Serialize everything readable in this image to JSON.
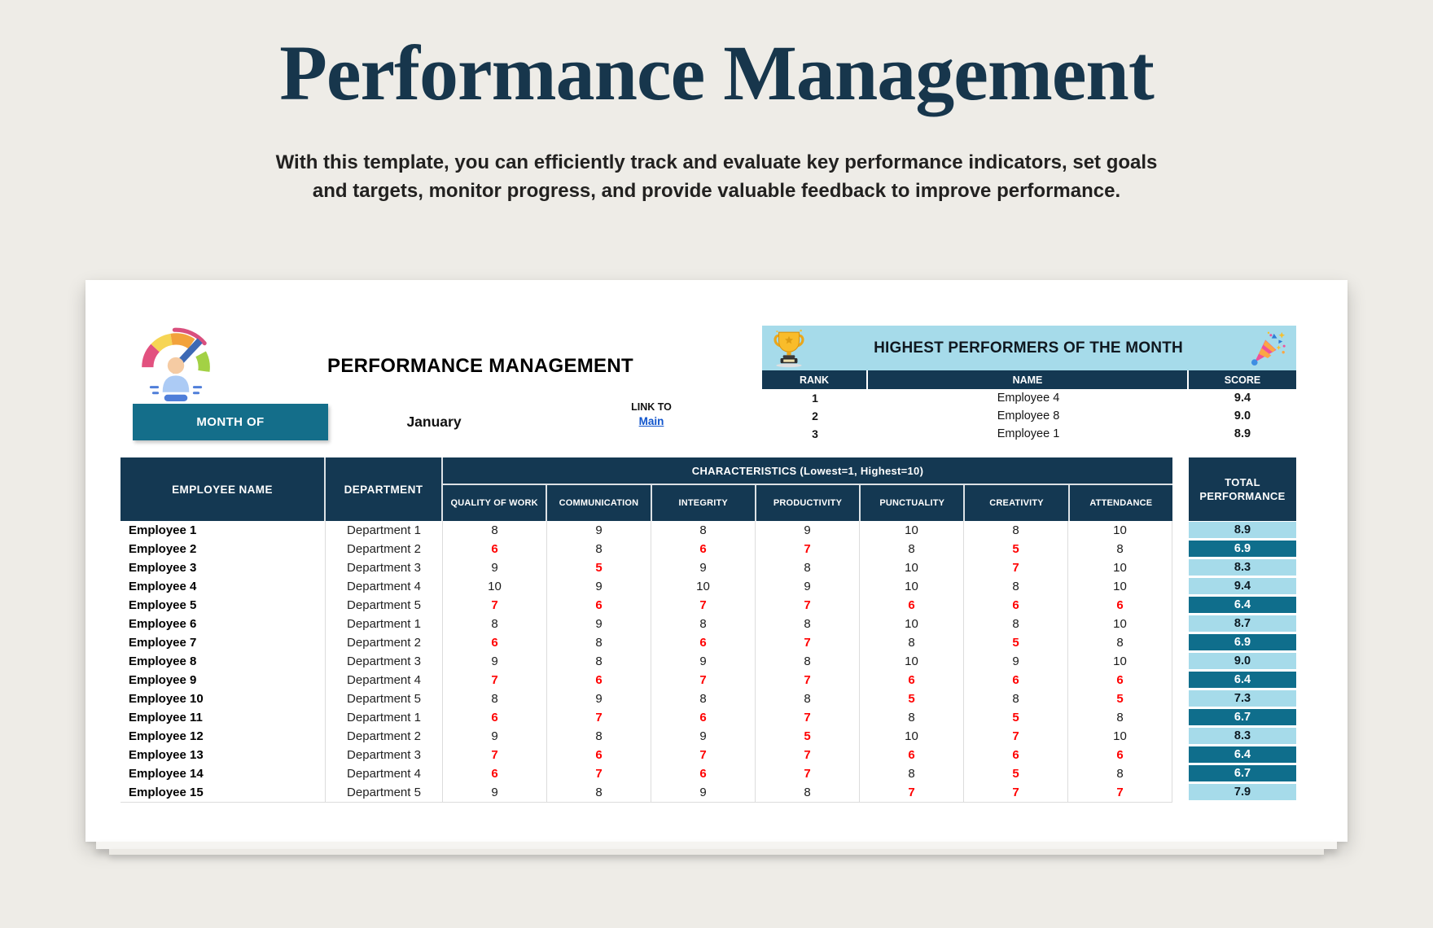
{
  "page": {
    "title": "Performance Management",
    "subtitle_line1": "With this template, you can efficiently track and evaluate key performance indicators, set goals",
    "subtitle_line2": "and targets, monitor progress, and provide valuable feedback to improve performance."
  },
  "sheet": {
    "header_title": "PERFORMANCE MANAGEMENT",
    "month_label": "MONTH OF",
    "month_value": "January",
    "link_label": "LINK TO",
    "link_text": "Main",
    "icons": {
      "gauge": "performance-gauge-icon",
      "trophy": "trophy-icon",
      "party_popper": "party-popper-icon"
    },
    "top_performers": {
      "title": "HIGHEST PERFORMERS OF THE MONTH",
      "columns": [
        "RANK",
        "NAME",
        "SCORE"
      ],
      "rows": [
        {
          "rank": "1",
          "name": "Employee 4",
          "score": "9.4"
        },
        {
          "rank": "2",
          "name": "Employee 8",
          "score": "9.0"
        },
        {
          "rank": "3",
          "name": "Employee 1",
          "score": "8.9"
        }
      ]
    },
    "table": {
      "employee_col": "EMPLOYEE NAME",
      "department_col": "DEPARTMENT",
      "characteristics_banner": "CHARACTERISTICS (Lowest=1, Highest=10)",
      "characteristic_cols": [
        "QUALITY OF WORK",
        "COMMUNICATION",
        "INTEGRITY",
        "PRODUCTIVITY",
        "PUNCTUALITY",
        "CREATIVITY",
        "ATTENDANCE"
      ],
      "total_col": "TOTAL PERFORMANCE",
      "low_score_threshold_red": 7,
      "low_total_threshold_dark": 7.0,
      "rows": [
        {
          "name": "Employee 1",
          "department": "Department 1",
          "scores": [
            8,
            9,
            8,
            9,
            10,
            8,
            10
          ],
          "total": "8.9"
        },
        {
          "name": "Employee 2",
          "department": "Department 2",
          "scores": [
            6,
            8,
            6,
            7,
            8,
            5,
            8
          ],
          "total": "6.9"
        },
        {
          "name": "Employee 3",
          "department": "Department 3",
          "scores": [
            9,
            5,
            9,
            8,
            10,
            7,
            10
          ],
          "total": "8.3"
        },
        {
          "name": "Employee 4",
          "department": "Department 4",
          "scores": [
            10,
            9,
            10,
            9,
            10,
            8,
            10
          ],
          "total": "9.4"
        },
        {
          "name": "Employee 5",
          "department": "Department 5",
          "scores": [
            7,
            6,
            7,
            7,
            6,
            6,
            6
          ],
          "total": "6.4"
        },
        {
          "name": "Employee 6",
          "department": "Department 1",
          "scores": [
            8,
            9,
            8,
            8,
            10,
            8,
            10
          ],
          "total": "8.7"
        },
        {
          "name": "Employee 7",
          "department": "Department 2",
          "scores": [
            6,
            8,
            6,
            7,
            8,
            5,
            8
          ],
          "total": "6.9"
        },
        {
          "name": "Employee 8",
          "department": "Department 3",
          "scores": [
            9,
            8,
            9,
            8,
            10,
            9,
            10
          ],
          "total": "9.0"
        },
        {
          "name": "Employee 9",
          "department": "Department 4",
          "scores": [
            7,
            6,
            7,
            7,
            6,
            6,
            6
          ],
          "total": "6.4"
        },
        {
          "name": "Employee 10",
          "department": "Department 5",
          "scores": [
            8,
            9,
            8,
            8,
            5,
            8,
            5
          ],
          "total": "7.3"
        },
        {
          "name": "Employee 11",
          "department": "Department 1",
          "scores": [
            6,
            7,
            6,
            7,
            8,
            5,
            8
          ],
          "total": "6.7"
        },
        {
          "name": "Employee 12",
          "department": "Department 2",
          "scores": [
            9,
            8,
            9,
            5,
            10,
            7,
            10
          ],
          "total": "8.3"
        },
        {
          "name": "Employee 13",
          "department": "Department 3",
          "scores": [
            7,
            6,
            7,
            7,
            6,
            6,
            6
          ],
          "total": "6.4"
        },
        {
          "name": "Employee 14",
          "department": "Department 4",
          "scores": [
            6,
            7,
            6,
            7,
            8,
            5,
            8
          ],
          "total": "6.7"
        },
        {
          "name": "Employee 15",
          "department": "Department 5",
          "scores": [
            9,
            8,
            9,
            8,
            7,
            7,
            7
          ],
          "total": "7.9"
        }
      ]
    }
  },
  "colors": {
    "page_background": "#EEECE7",
    "title_navy": "#17364C",
    "header_navy": "#143852",
    "teal": "#146E8A",
    "light_blue": "#A6DBEA",
    "total_low_teal": "#0F6E8C",
    "score_red": "#FF0000",
    "link_blue": "#1155CC"
  }
}
